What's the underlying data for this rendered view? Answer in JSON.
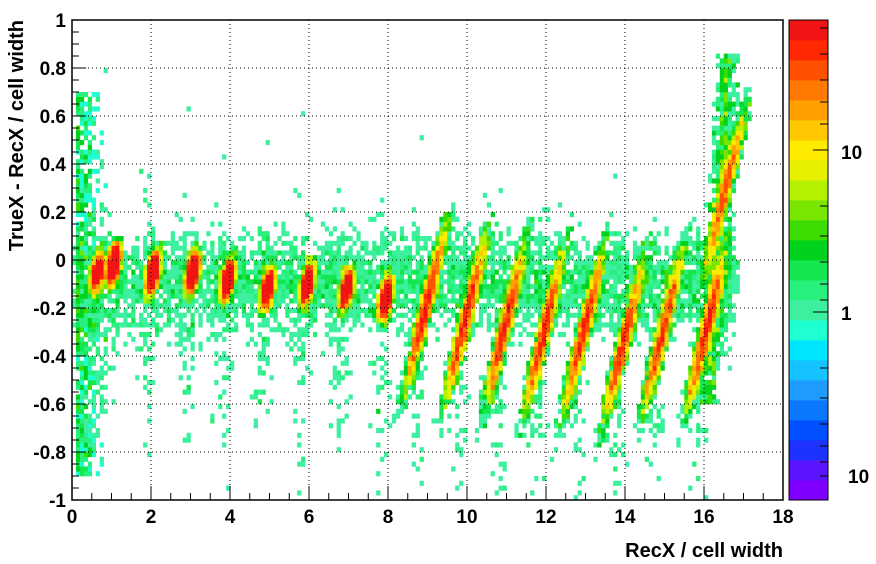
{
  "chart_data": {
    "type": "heatmap",
    "xlabel": "RecX / cell width",
    "ylabel": "TrueX - RecX / cell width",
    "xlim": [
      0,
      18
    ],
    "ylim": [
      -1,
      1
    ],
    "x_ticks": [
      0,
      2,
      4,
      6,
      8,
      10,
      12,
      14,
      16,
      18
    ],
    "y_ticks": [
      -1,
      -0.8,
      -0.6,
      -0.4,
      -0.2,
      0,
      0.2,
      0.4,
      0.6,
      0.8,
      1
    ],
    "x_tick_labels": [
      "0",
      "2",
      "4",
      "6",
      "8",
      "10",
      "12",
      "14",
      "16",
      "18"
    ],
    "y_tick_labels": [
      "-1",
      "-0.8",
      "-0.6",
      "-0.4",
      "-0.2",
      "0",
      "0.2",
      "0.4",
      "0.6",
      "0.8",
      "1"
    ],
    "grid": true,
    "z_scale": "log",
    "colorbar_labels": [
      "10",
      "1",
      "10"
    ],
    "palette": [
      "#7f00ff",
      "#5a14ff",
      "#1e32ff",
      "#0050ff",
      "#0a78ff",
      "#1e9bff",
      "#14c3ff",
      "#00e6ff",
      "#1effd2",
      "#3cf0a0",
      "#28f07d",
      "#14e650",
      "#00d21e",
      "#3cdc00",
      "#78e600",
      "#b4f000",
      "#e6f000",
      "#ffeb00",
      "#ffc800",
      "#ffa000",
      "#ff7800",
      "#ff5000",
      "#ff2800",
      "#f01414"
    ],
    "cells": [
      {
        "x": 0.5,
        "y": -0.05,
        "z": 3.2
      },
      {
        "x": 0.9,
        "y": -0.02,
        "z": 12
      },
      {
        "x": 1.9,
        "y": -0.05,
        "z": 9
      },
      {
        "x": 2.9,
        "y": -0.05,
        "z": 8
      },
      {
        "x": 3.8,
        "y": -0.08,
        "z": 7
      },
      {
        "x": 4.8,
        "y": -0.12,
        "z": 6
      },
      {
        "x": 5.8,
        "y": -0.1,
        "z": 6
      },
      {
        "x": 6.8,
        "y": -0.12,
        "z": 6
      },
      {
        "x": 7.8,
        "y": -0.16,
        "z": 8
      },
      {
        "x": 8.8,
        "y": -0.2,
        "z": 14
      },
      {
        "x": 9.8,
        "y": -0.25,
        "z": 14
      },
      {
        "x": 10.8,
        "y": -0.28,
        "z": 13
      },
      {
        "x": 11.8,
        "y": -0.3,
        "z": 12
      },
      {
        "x": 12.8,
        "y": -0.3,
        "z": 12
      },
      {
        "x": 13.8,
        "y": -0.35,
        "z": 11
      },
      {
        "x": 14.8,
        "y": -0.3,
        "z": 10
      },
      {
        "x": 15.9,
        "y": -0.3,
        "z": 11
      },
      {
        "x": 16.4,
        "y": 0.3,
        "z": 6
      }
    ]
  }
}
